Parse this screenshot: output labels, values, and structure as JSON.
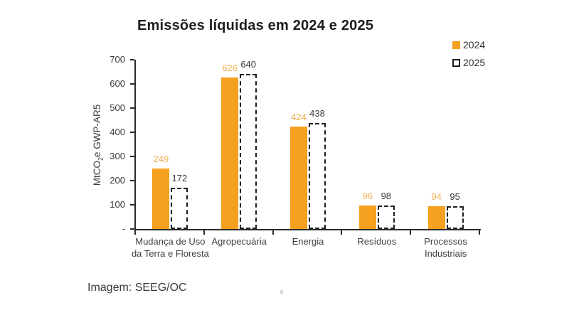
{
  "page": {
    "background": "#ffffff"
  },
  "chart_data": {
    "type": "bar",
    "title": "Emissões líquidas em 2024 e 2025",
    "categories": [
      "Mudança de Uso da Terra e Floresta",
      "Agropecuária",
      "Energia",
      "Resíduos",
      "Processos Industriais"
    ],
    "series": [
      {
        "name": "2024",
        "values": [
          249,
          626,
          424,
          96,
          94
        ],
        "style": "solid",
        "color": "#F5A01E",
        "label_color": "#F0B055"
      },
      {
        "name": "2025",
        "values": [
          172,
          640,
          438,
          98,
          95
        ],
        "style": "dashed",
        "border_color": "#1f1f1f",
        "label_color": "#3a3a3a"
      }
    ],
    "ylabel": {
      "prefix": "MtCO",
      "sub": "2",
      "suffix": "e GWP-AR5"
    },
    "y_ticks": [
      "700",
      "600",
      "500",
      "400",
      "300",
      "200",
      "100",
      "-"
    ],
    "ylim": [
      0,
      700
    ],
    "grid": false,
    "legend_position": "top-right",
    "axis_color": "#2b2b2b"
  },
  "caption": {
    "text": "Imagem: SEEG/OC"
  },
  "footnote_mark": "8"
}
